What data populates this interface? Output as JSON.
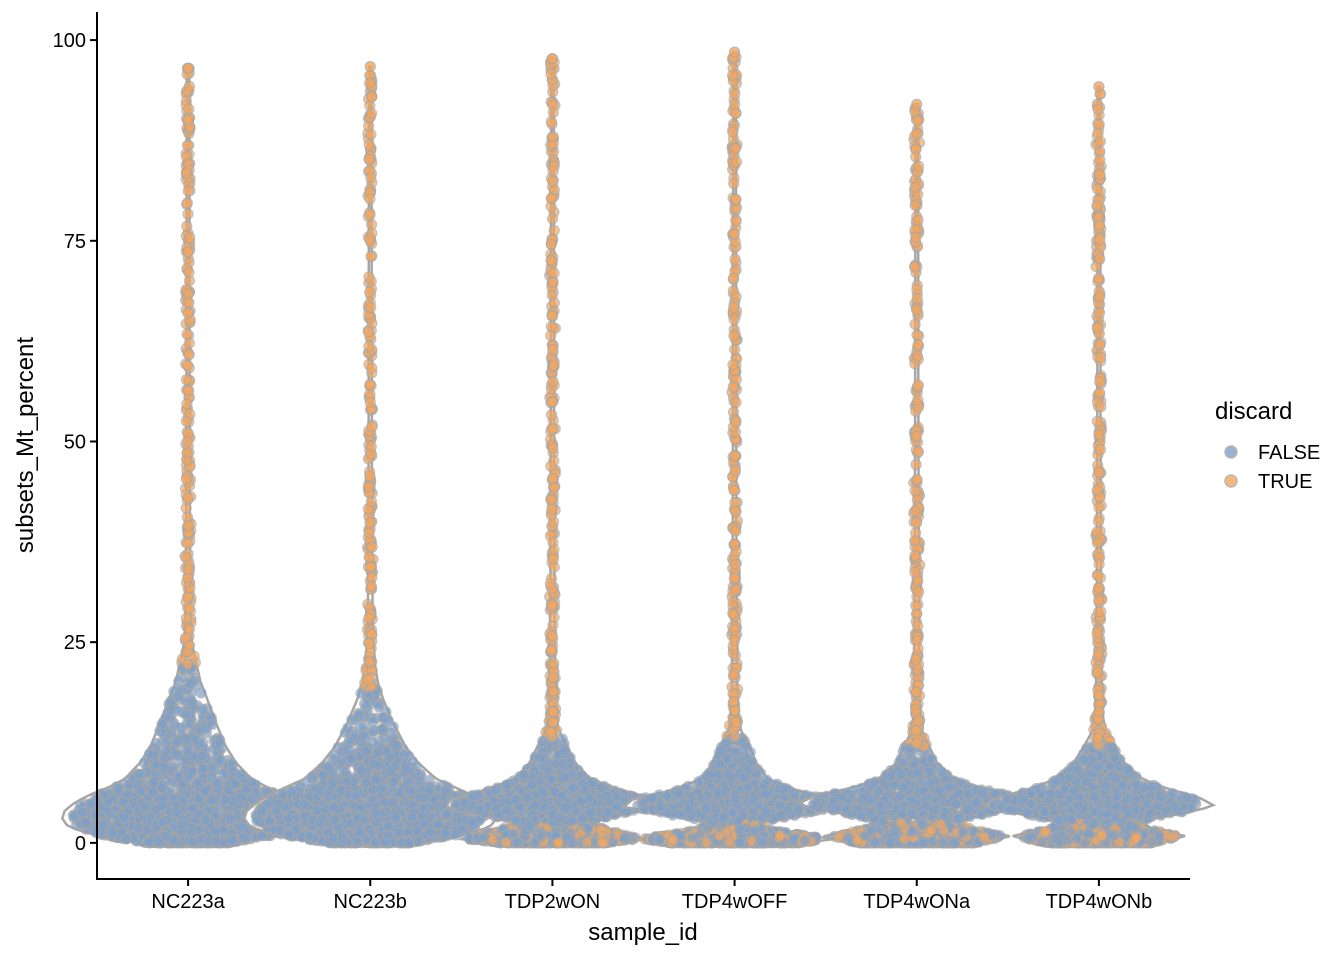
{
  "chart_data": {
    "type": "violin",
    "title": "",
    "xlabel": "sample_id",
    "ylabel": "subsets_Mt_percent",
    "ylim": [
      -4.5,
      103.5
    ],
    "y_ticks": [
      0,
      25,
      50,
      75,
      100
    ],
    "y_tick_labels": [
      "0",
      "25",
      "50",
      "75",
      "100"
    ],
    "categories": [
      "NC223a",
      "NC223b",
      "TDP2wON",
      "TDP4wOFF",
      "TDP4wONa",
      "TDP4wONb"
    ],
    "grid": false,
    "legend": {
      "title": "discard",
      "position": "right",
      "entries": [
        {
          "label": "FALSE",
          "color": "#7ea0c9"
        },
        {
          "label": "TRUE",
          "color": "#f4a760"
        }
      ]
    },
    "colors": {
      "violin_outline": "#a6a6a6",
      "false": "#7ea0c9",
      "true": "#f4a760"
    },
    "series": [
      {
        "category": "NC223a",
        "max": 96.5,
        "false_upper": 22,
        "density": [
          [
            0,
            0.35
          ],
          [
            1,
            0.75
          ],
          [
            2,
            0.95
          ],
          [
            3,
            1.0
          ],
          [
            4,
            0.98
          ],
          [
            5,
            0.9
          ],
          [
            6,
            0.78
          ],
          [
            7,
            0.62
          ],
          [
            8,
            0.5
          ],
          [
            10,
            0.38
          ],
          [
            12,
            0.3
          ],
          [
            15,
            0.22
          ],
          [
            18,
            0.15
          ],
          [
            20,
            0.1
          ],
          [
            22,
            0.07
          ],
          [
            25,
            0.03
          ],
          [
            30,
            0.018
          ],
          [
            40,
            0.014
          ],
          [
            60,
            0.012
          ],
          [
            96.5,
            0.01
          ]
        ]
      },
      {
        "category": "NC223b",
        "max": 96.7,
        "false_upper": 19,
        "density": [
          [
            0,
            0.35
          ],
          [
            1,
            0.75
          ],
          [
            2,
            0.95
          ],
          [
            3,
            1.0
          ],
          [
            4,
            0.98
          ],
          [
            5,
            0.9
          ],
          [
            6,
            0.8
          ],
          [
            7,
            0.66
          ],
          [
            8,
            0.52
          ],
          [
            10,
            0.38
          ],
          [
            12,
            0.28
          ],
          [
            15,
            0.18
          ],
          [
            18,
            0.1
          ],
          [
            20,
            0.06
          ],
          [
            22,
            0.04
          ],
          [
            25,
            0.025
          ],
          [
            30,
            0.018
          ],
          [
            40,
            0.014
          ],
          [
            60,
            0.012
          ],
          [
            96.7,
            0.01
          ]
        ]
      },
      {
        "category": "TDP2wON",
        "max": 97.7,
        "false_upper": 13,
        "density": [
          [
            0,
            0.45
          ],
          [
            0.5,
            0.75
          ],
          [
            1.5,
            0.5
          ],
          [
            2.5,
            0.28
          ],
          [
            3.5,
            0.55
          ],
          [
            4.5,
            0.85
          ],
          [
            5.5,
            0.8
          ],
          [
            6.5,
            0.55
          ],
          [
            8,
            0.3
          ],
          [
            10,
            0.18
          ],
          [
            12,
            0.12
          ],
          [
            14,
            0.05
          ],
          [
            16,
            0.03
          ],
          [
            20,
            0.022
          ],
          [
            30,
            0.016
          ],
          [
            50,
            0.013
          ],
          [
            97.7,
            0.01
          ]
        ]
      },
      {
        "category": "TDP4wOFF",
        "max": 98.5,
        "false_upper": 13,
        "density": [
          [
            0,
            0.55
          ],
          [
            0.5,
            0.8
          ],
          [
            1.5,
            0.35
          ],
          [
            2.5,
            0.18
          ],
          [
            3.5,
            0.55
          ],
          [
            4.5,
            0.88
          ],
          [
            5.5,
            0.8
          ],
          [
            6.5,
            0.5
          ],
          [
            8,
            0.26
          ],
          [
            10,
            0.17
          ],
          [
            12,
            0.12
          ],
          [
            14,
            0.05
          ],
          [
            16,
            0.03
          ],
          [
            20,
            0.022
          ],
          [
            30,
            0.016
          ],
          [
            50,
            0.013
          ],
          [
            98.5,
            0.01
          ]
        ]
      },
      {
        "category": "TDP4wONa",
        "max": 92,
        "false_upper": 12,
        "density": [
          [
            0,
            0.5
          ],
          [
            0.8,
            0.75
          ],
          [
            1.8,
            0.45
          ],
          [
            2.8,
            0.3
          ],
          [
            3.8,
            0.65
          ],
          [
            4.8,
            0.95
          ],
          [
            5.8,
            0.82
          ],
          [
            7,
            0.48
          ],
          [
            8,
            0.3
          ],
          [
            10,
            0.16
          ],
          [
            12,
            0.1
          ],
          [
            14,
            0.04
          ],
          [
            16,
            0.025
          ],
          [
            20,
            0.02
          ],
          [
            30,
            0.016
          ],
          [
            50,
            0.013
          ],
          [
            92,
            0.01
          ]
        ]
      },
      {
        "category": "TDP4wONb",
        "max": 94.2,
        "false_upper": 12,
        "density": [
          [
            0,
            0.45
          ],
          [
            0.8,
            0.7
          ],
          [
            1.8,
            0.4
          ],
          [
            2.8,
            0.35
          ],
          [
            3.8,
            0.7
          ],
          [
            4.6,
            0.92
          ],
          [
            5.6,
            0.8
          ],
          [
            7,
            0.5
          ],
          [
            8,
            0.34
          ],
          [
            10,
            0.2
          ],
          [
            12,
            0.12
          ],
          [
            14,
            0.05
          ],
          [
            16,
            0.03
          ],
          [
            20,
            0.022
          ],
          [
            30,
            0.016
          ],
          [
            50,
            0.013
          ],
          [
            94.2,
            0.01
          ]
        ]
      }
    ]
  }
}
